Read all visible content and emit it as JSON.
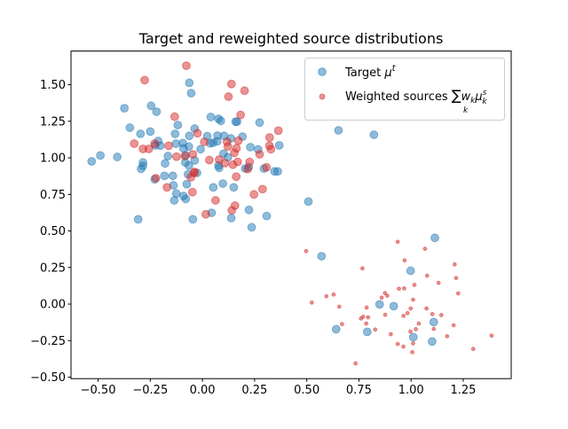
{
  "chart_data": {
    "type": "scatter",
    "title": "Target and reweighted source distributions",
    "xlabel": "",
    "ylabel": "",
    "xlim": [
      -0.63,
      1.48
    ],
    "ylim": [
      -0.51,
      1.73
    ],
    "xticks": [
      -0.5,
      -0.25,
      0.0,
      0.25,
      0.5,
      0.75,
      1.0,
      1.25
    ],
    "xtick_labels": [
      "−0.50",
      "−0.25",
      "0.00",
      "0.25",
      "0.50",
      "0.75",
      "1.00",
      "1.25"
    ],
    "yticks": [
      -0.5,
      -0.25,
      0.0,
      0.25,
      0.5,
      0.75,
      1.0,
      1.25,
      1.5
    ],
    "ytick_labels": [
      "−0.50",
      "−0.25",
      "0.00",
      "0.25",
      "0.50",
      "0.75",
      "1.00",
      "1.25",
      "1.50"
    ],
    "grid": false,
    "legend": {
      "placement": "upper right",
      "entries": [
        {
          "text": "Target ",
          "math_base": "μ",
          "math_sup": "t",
          "color": "#1f77b4"
        },
        {
          "text": "Weighted sources ",
          "math_sum": "∑",
          "math_sum_sub": "k",
          "math_w": "w",
          "math_w_sub": "k",
          "math_base": "μ",
          "math_sup": "s",
          "math_sub": "k",
          "color": "#d62728"
        }
      ]
    },
    "series": [
      {
        "color": "#1f77b4",
        "alpha": 0.5,
        "points": [
          [
            -0.063,
            1.513
          ],
          [
            -0.054,
            1.442
          ],
          [
            -0.374,
            1.339
          ],
          [
            -0.246,
            1.356
          ],
          [
            -0.22,
            1.315
          ],
          [
            -0.118,
            1.224
          ],
          [
            -0.348,
            1.206
          ],
          [
            -0.297,
            1.164
          ],
          [
            -0.25,
            1.18
          ],
          [
            -0.037,
            1.2
          ],
          [
            -0.131,
            1.164
          ],
          [
            -0.063,
            1.15
          ],
          [
            -0.212,
            1.115
          ],
          [
            -0.226,
            1.085
          ],
          [
            -0.202,
            1.083
          ],
          [
            -0.127,
            1.097
          ],
          [
            -0.094,
            1.101
          ],
          [
            -0.065,
            1.077
          ],
          [
            -0.091,
            1.065
          ],
          [
            -0.009,
            1.059
          ],
          [
            -0.165,
            1.012
          ],
          [
            -0.08,
            1.018
          ],
          [
            -0.037,
            0.982
          ],
          [
            -0.179,
            0.962
          ],
          [
            -0.285,
            0.968
          ],
          [
            -0.285,
            0.945
          ],
          [
            -0.294,
            0.925
          ],
          [
            -0.082,
            0.968
          ],
          [
            -0.065,
            0.947
          ],
          [
            -0.531,
            0.976
          ],
          [
            -0.489,
            1.016
          ],
          [
            -0.408,
            1.006
          ],
          [
            -0.182,
            0.877
          ],
          [
            -0.142,
            0.877
          ],
          [
            -0.229,
            0.853
          ],
          [
            -0.069,
            0.887
          ],
          [
            -0.026,
            0.897
          ],
          [
            -0.139,
            0.812
          ],
          [
            -0.075,
            0.82
          ],
          [
            -0.125,
            0.756
          ],
          [
            -0.091,
            0.739
          ],
          [
            -0.08,
            0.719
          ],
          [
            -0.135,
            0.709
          ],
          [
            -0.308,
            0.58
          ],
          [
            -0.046,
            0.58
          ],
          [
            0.04,
            1.279
          ],
          [
            0.077,
            1.267
          ],
          [
            0.088,
            1.253
          ],
          [
            0.159,
            1.247
          ],
          [
            0.166,
            1.247
          ],
          [
            0.274,
            1.241
          ],
          [
            0.023,
            1.148
          ],
          [
            0.072,
            1.152
          ],
          [
            0.104,
            1.15
          ],
          [
            0.136,
            1.133
          ],
          [
            0.192,
            1.145
          ],
          [
            0.051,
            1.103
          ],
          [
            0.071,
            1.113
          ],
          [
            0.037,
            1.099
          ],
          [
            0.23,
            1.073
          ],
          [
            0.267,
            1.057
          ],
          [
            0.368,
            1.085
          ],
          [
            0.101,
            1.028
          ],
          [
            0.122,
            1.004
          ],
          [
            0.077,
            0.947
          ],
          [
            0.08,
            0.931
          ],
          [
            0.205,
            0.927
          ],
          [
            0.222,
            0.937
          ],
          [
            0.295,
            0.927
          ],
          [
            0.346,
            0.907
          ],
          [
            0.361,
            0.907
          ],
          [
            0.052,
            0.798
          ],
          [
            0.098,
            0.824
          ],
          [
            0.15,
            0.798
          ],
          [
            0.044,
            0.624
          ],
          [
            0.223,
            0.644
          ],
          [
            0.138,
            0.588
          ],
          [
            0.308,
            0.602
          ],
          [
            0.236,
            0.525
          ],
          [
            0.508,
            0.701
          ],
          [
            0.571,
            0.327
          ],
          [
            0.652,
            1.188
          ],
          [
            0.822,
            1.158
          ],
          [
            1.114,
            0.453
          ],
          [
            0.998,
            0.228
          ],
          [
            0.849,
            -0.002
          ],
          [
            0.917,
            -0.014
          ],
          [
            1.109,
            -0.123
          ],
          [
            0.641,
            -0.172
          ],
          [
            0.79,
            -0.19
          ],
          [
            1.011,
            -0.226
          ],
          [
            1.101,
            -0.256
          ]
        ]
      },
      {
        "color": "#d62728",
        "alpha": 0.5,
        "points_large": [
          [
            -0.077,
            1.63
          ],
          [
            -0.277,
            1.531
          ],
          [
            -0.133,
            1.281
          ],
          [
            -0.024,
            1.168
          ],
          [
            -0.327,
            1.097
          ],
          [
            -0.285,
            1.061
          ],
          [
            -0.257,
            1.061
          ],
          [
            -0.229,
            1.097
          ],
          [
            -0.162,
            1.083
          ],
          [
            -0.124,
            1.008
          ],
          [
            -0.084,
            1.012
          ],
          [
            -0.046,
            1.024
          ],
          [
            -0.223,
            0.861
          ],
          [
            -0.17,
            0.798
          ],
          [
            -0.048,
            0.765
          ],
          [
            -0.04,
            0.897
          ],
          [
            -0.055,
            0.867
          ],
          [
            0.009,
            1.109
          ],
          [
            0.016,
            0.614
          ],
          [
            0.139,
            1.505
          ],
          [
            0.202,
            1.459
          ],
          [
            0.125,
            1.418
          ],
          [
            0.183,
            1.293
          ],
          [
            0.364,
            1.186
          ],
          [
            0.322,
            1.139
          ],
          [
            0.118,
            1.109
          ],
          [
            0.172,
            1.117
          ],
          [
            0.122,
            1.077
          ],
          [
            0.163,
            1.065
          ],
          [
            0.321,
            1.083
          ],
          [
            0.328,
            1.059
          ],
          [
            0.274,
            1.024
          ],
          [
            0.153,
            1.034
          ],
          [
            0.033,
            0.984
          ],
          [
            0.08,
            0.988
          ],
          [
            0.108,
            0.964
          ],
          [
            0.146,
            0.953
          ],
          [
            0.169,
            0.972
          ],
          [
            0.226,
            0.972
          ],
          [
            0.217,
            0.923
          ],
          [
            0.307,
            0.935
          ],
          [
            -0.038,
            0.903
          ],
          [
            0.162,
            0.871
          ],
          [
            0.063,
            0.709
          ],
          [
            0.247,
            0.75
          ],
          [
            0.288,
            0.786
          ],
          [
            0.156,
            0.673
          ],
          [
            0.141,
            0.641
          ]
        ],
        "points_small": [
          [
            0.936,
            0.426
          ],
          [
            0.497,
            0.362
          ],
          [
            1.067,
            0.378
          ],
          [
            0.969,
            0.299
          ],
          [
            0.767,
            0.244
          ],
          [
            1.209,
            0.271
          ],
          [
            1.077,
            0.194
          ],
          [
            1.216,
            0.178
          ],
          [
            1.132,
            0.145
          ],
          [
            1.016,
            0.131
          ],
          [
            0.942,
            0.105
          ],
          [
            0.967,
            0.107
          ],
          [
            1.226,
            0.073
          ],
          [
            0.875,
            0.075
          ],
          [
            0.886,
            0.057
          ],
          [
            0.859,
            0.044
          ],
          [
            0.594,
            0.053
          ],
          [
            0.629,
            0.065
          ],
          [
            0.524,
            0.01
          ],
          [
            1.01,
            0.03
          ],
          [
            0.656,
            -0.018
          ],
          [
            0.787,
            -0.024
          ],
          [
            0.998,
            -0.03
          ],
          [
            1.074,
            -0.03
          ],
          [
            0.983,
            -0.062
          ],
          [
            0.964,
            -0.081
          ],
          [
            1.102,
            -0.069
          ],
          [
            1.145,
            -0.075
          ],
          [
            0.876,
            -0.073
          ],
          [
            0.77,
            -0.087
          ],
          [
            0.76,
            -0.099
          ],
          [
            0.794,
            -0.091
          ],
          [
            0.785,
            -0.133
          ],
          [
            0.669,
            -0.137
          ],
          [
            1.037,
            -0.133
          ],
          [
            1.204,
            -0.145
          ],
          [
            1.023,
            -0.172
          ],
          [
            1.109,
            -0.17
          ],
          [
            0.828,
            -0.174
          ],
          [
            0.997,
            -0.188
          ],
          [
            0.903,
            -0.206
          ],
          [
            1.173,
            -0.22
          ],
          [
            1.386,
            -0.216
          ],
          [
            1.01,
            -0.269
          ],
          [
            0.936,
            -0.273
          ],
          [
            0.963,
            -0.291
          ],
          [
            1.298,
            -0.307
          ],
          [
            1.006,
            -0.329
          ],
          [
            0.734,
            -0.406
          ]
        ]
      }
    ]
  }
}
